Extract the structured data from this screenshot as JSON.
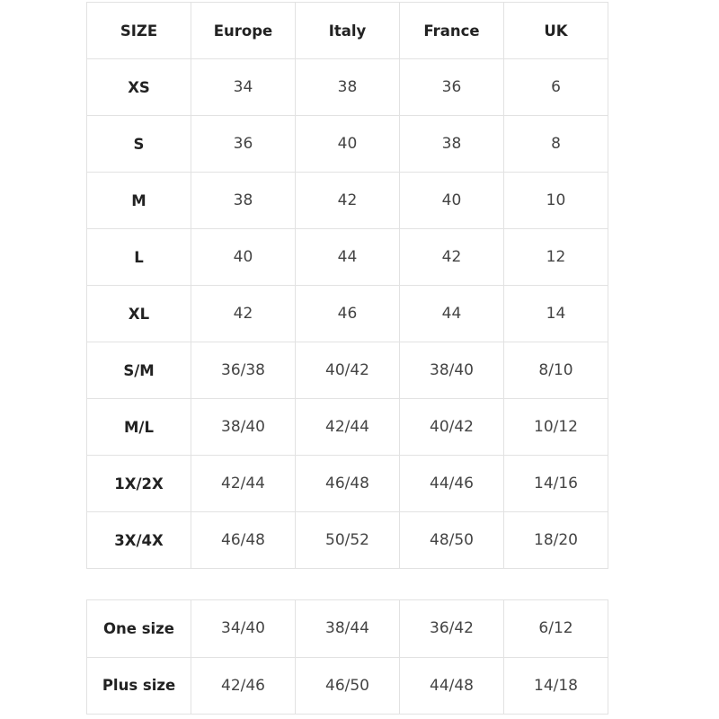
{
  "main_table": {
    "headers": [
      "SIZE",
      "Europe",
      "Italy",
      "France",
      "UK"
    ],
    "rows": [
      [
        "XS",
        "34",
        "38",
        "36",
        "6"
      ],
      [
        "S",
        "36",
        "40",
        "38",
        "8"
      ],
      [
        "M",
        "38",
        "42",
        "40",
        "10"
      ],
      [
        "L",
        "40",
        "44",
        "42",
        "12"
      ],
      [
        "XL",
        "42",
        "46",
        "44",
        "14"
      ],
      [
        "S/M",
        "36/38",
        "40/42",
        "38/40",
        "8/10"
      ],
      [
        "M/L",
        "38/40",
        "42/44",
        "40/42",
        "10/12"
      ],
      [
        "1X/2X",
        "42/44",
        "46/48",
        "44/46",
        "14/16"
      ],
      [
        "3X/4X",
        "46/48",
        "50/52",
        "48/50",
        "18/20"
      ]
    ]
  },
  "extra_table": {
    "rows": [
      [
        "One size",
        "34/40",
        "38/44",
        "36/42",
        "6/12"
      ],
      [
        "Plus size",
        "42/46",
        "46/50",
        "44/48",
        "14/18"
      ]
    ]
  }
}
